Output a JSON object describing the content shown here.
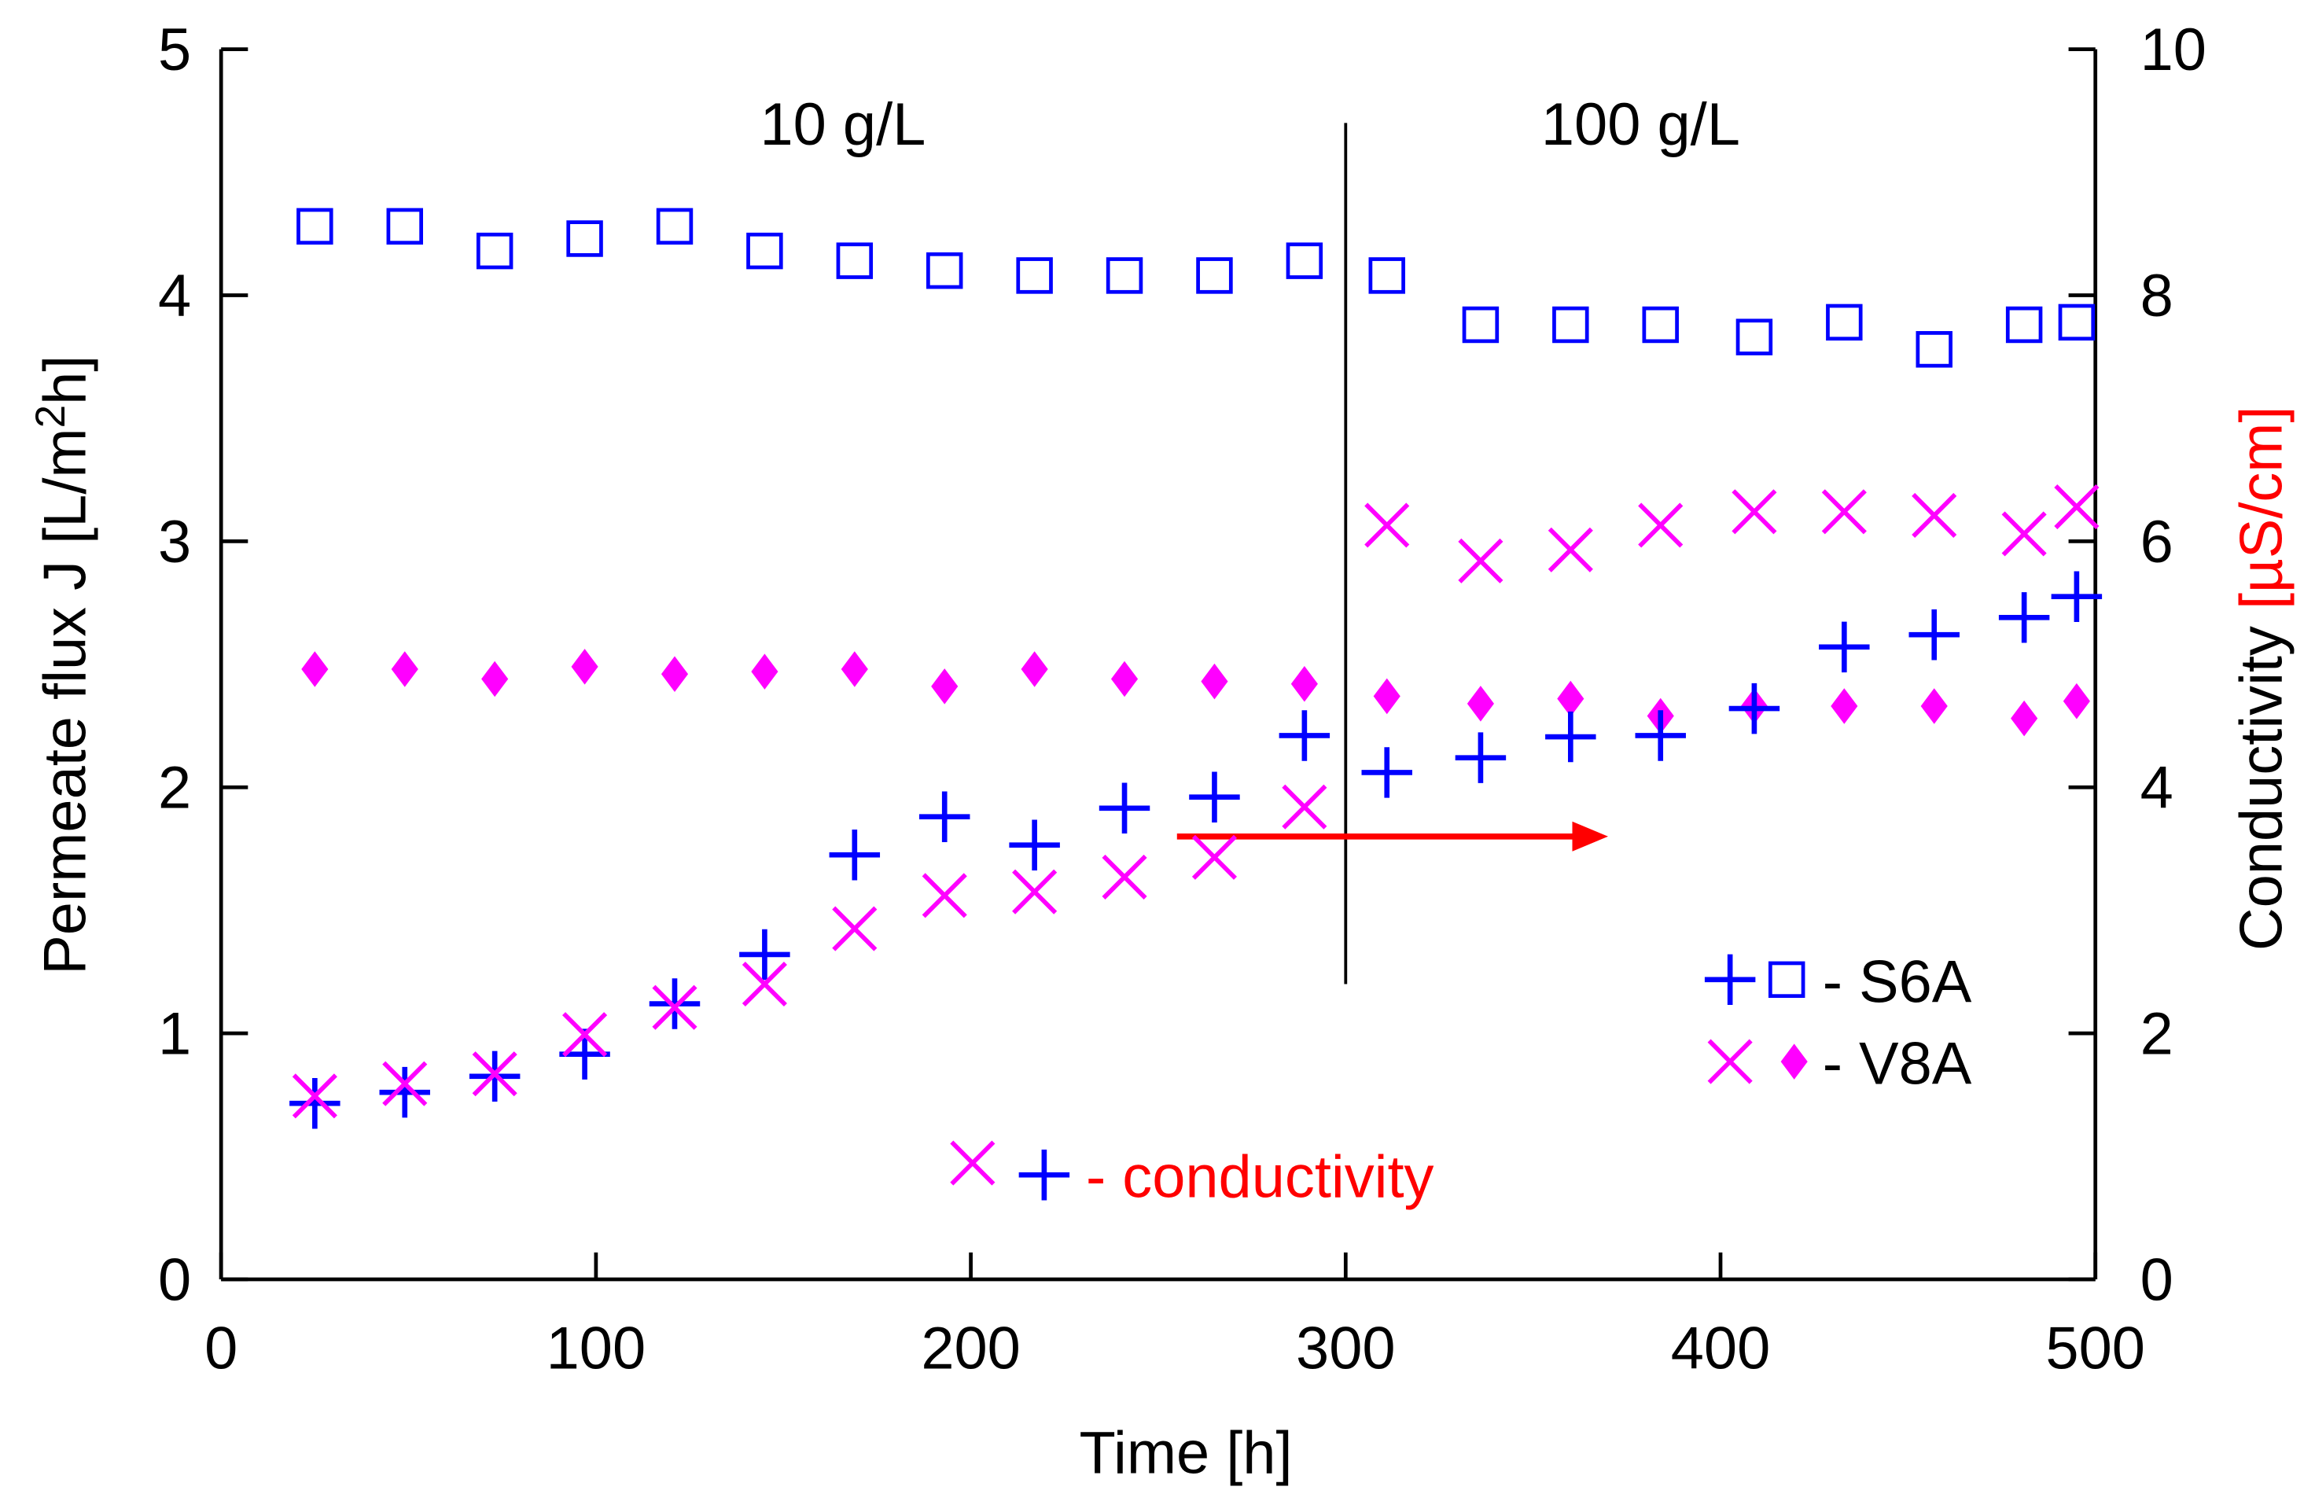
{
  "chart_data": {
    "type": "scatter",
    "title": "",
    "xlabel": "Time [h]",
    "ylabel": "Permeate flux J [L/m²h]",
    "ylabel_parts": {
      "pre": "Permeate flux J [L/m",
      "sup": "2",
      "post": "h]"
    },
    "y2label": "Conductivity [µS/cm]",
    "y2label_parts": {
      "black": "Conductivity ",
      "red": "[µS/cm]"
    },
    "xlim": [
      0,
      500
    ],
    "ylim": [
      0,
      5
    ],
    "y2lim": [
      0,
      10
    ],
    "xticks": [
      "0",
      "100",
      "200",
      "300",
      "400",
      "500"
    ],
    "yticks": [
      "0",
      "1",
      "2",
      "3",
      "4",
      "5"
    ],
    "y2ticks": [
      "0",
      "2",
      "4",
      "6",
      "8",
      "10"
    ],
    "grid": false,
    "annotations": {
      "region1": "10 g/L",
      "region2": "100 g/L",
      "divider_x": 300,
      "divider_range": [
        1.2,
        4.7
      ],
      "arrow": {
        "from_x": 255,
        "to_x": 370,
        "y": 1.8,
        "color": "#ff0000"
      }
    },
    "legend": {
      "placement": "bottom-right",
      "s6a": "- S6A",
      "v8a": "- V8A",
      "conductivity": "- conductivity"
    },
    "colors": {
      "blue": "#0000ff",
      "magenta": "#ff00ff",
      "red": "#ff0000"
    },
    "x": [
      25,
      49,
      73,
      97,
      121,
      145,
      169,
      193,
      217,
      241,
      265,
      289,
      311,
      336,
      360,
      384,
      409,
      433,
      457,
      481,
      495
    ],
    "series": [
      {
        "name": "S6A flux",
        "axis": "left",
        "marker": "square-open",
        "color": "#0000ff",
        "values": [
          4.28,
          4.28,
          4.18,
          4.23,
          4.28,
          4.18,
          4.14,
          4.1,
          4.08,
          4.08,
          4.08,
          4.14,
          4.08,
          3.88,
          3.88,
          3.88,
          3.83,
          3.89,
          3.78,
          3.88,
          3.89
        ]
      },
      {
        "name": "V8A flux",
        "axis": "left",
        "marker": "diamond-filled",
        "color": "#ff00ff",
        "values": [
          2.48,
          2.48,
          2.44,
          2.49,
          2.46,
          2.47,
          2.48,
          2.41,
          2.48,
          2.44,
          2.43,
          2.42,
          2.37,
          2.34,
          2.36,
          2.29,
          2.33,
          2.33,
          2.33,
          2.28,
          2.35
        ]
      },
      {
        "name": "S6A conductivity",
        "axis": "right",
        "marker": "plus",
        "color": "#0000ff",
        "values": [
          1.43,
          1.52,
          1.65,
          1.83,
          2.24,
          2.64,
          3.45,
          3.76,
          3.53,
          3.83,
          3.92,
          4.42,
          4.12,
          4.24,
          4.41,
          4.42,
          4.64,
          5.14,
          5.24,
          5.38,
          5.55
        ]
      },
      {
        "name": "V8A conductivity",
        "axis": "right",
        "marker": "x",
        "color": "#ff00ff",
        "values": [
          1.49,
          1.59,
          1.67,
          1.99,
          2.21,
          2.4,
          2.85,
          3.12,
          3.15,
          3.27,
          3.43,
          3.84,
          6.13,
          5.84,
          5.93,
          6.13,
          6.24,
          6.24,
          6.21,
          6.06,
          6.28
        ]
      }
    ]
  }
}
